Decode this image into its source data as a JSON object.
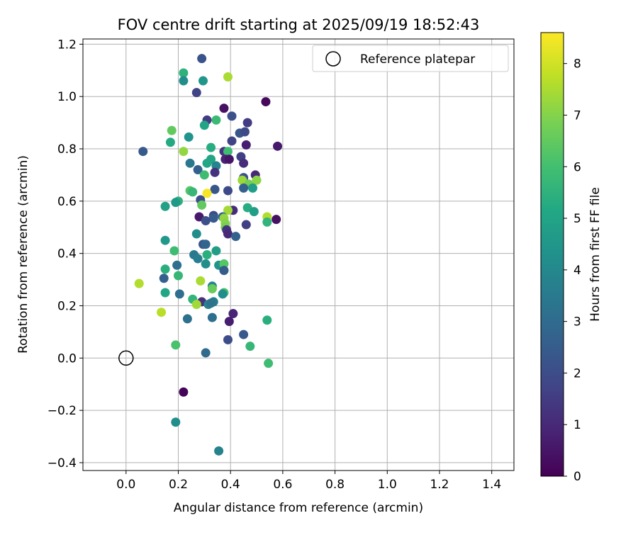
{
  "chart_data": {
    "type": "scatter",
    "title": "FOV centre drift starting at 2025/09/19 18:52:43",
    "xlabel": "Angular distance from reference (arcmin)",
    "ylabel": "Rotation from reference (arcmin)",
    "xlim": [
      -0.165,
      1.485
    ],
    "ylim": [
      -0.43,
      1.22
    ],
    "xticks": [
      0.0,
      0.2,
      0.4,
      0.6,
      0.8,
      1.0,
      1.2,
      1.4
    ],
    "xtick_labels": [
      "0.0",
      "0.2",
      "0.4",
      "0.6",
      "0.8",
      "1.0",
      "1.2",
      "1.4"
    ],
    "yticks": [
      -0.4,
      -0.2,
      0.0,
      0.2,
      0.4,
      0.6,
      0.8,
      1.0,
      1.2
    ],
    "ytick_labels": [
      "−0.4",
      "−0.2",
      "0.0",
      "0.2",
      "0.4",
      "0.6",
      "0.8",
      "1.0",
      "1.2"
    ],
    "grid": true,
    "legend": {
      "location": "upper right",
      "entries": [
        "Reference platepar"
      ]
    },
    "reference_point": {
      "x": 0.0,
      "y": 0.0,
      "label": "Reference platepar"
    },
    "colorbar": {
      "label": "Hours from first FF file",
      "colormap": "viridis",
      "range": [
        0,
        8.6
      ],
      "ticks": [
        0,
        1,
        2,
        3,
        4,
        5,
        6,
        7,
        8
      ],
      "tick_labels": [
        "0",
        "1",
        "2",
        "3",
        "4",
        "5",
        "6",
        "7",
        "8"
      ]
    },
    "points": [
      {
        "x": 0.29,
        "y": 1.145,
        "h": 2.2
      },
      {
        "x": 0.22,
        "y": 1.09,
        "h": 5.5
      },
      {
        "x": 0.39,
        "y": 1.075,
        "h": 7.5
      },
      {
        "x": 0.22,
        "y": 1.06,
        "h": 4.2
      },
      {
        "x": 0.295,
        "y": 1.06,
        "h": 4.5
      },
      {
        "x": 0.27,
        "y": 1.015,
        "h": 1.7
      },
      {
        "x": 0.535,
        "y": 0.98,
        "h": 0.2
      },
      {
        "x": 0.375,
        "y": 0.955,
        "h": 0.4
      },
      {
        "x": 0.405,
        "y": 0.925,
        "h": 2.1
      },
      {
        "x": 0.31,
        "y": 0.91,
        "h": 1.5
      },
      {
        "x": 0.345,
        "y": 0.91,
        "h": 5.8
      },
      {
        "x": 0.465,
        "y": 0.9,
        "h": 1.5
      },
      {
        "x": 0.3,
        "y": 0.89,
        "h": 5.0
      },
      {
        "x": 0.175,
        "y": 0.87,
        "h": 6.5
      },
      {
        "x": 0.435,
        "y": 0.86,
        "h": 2.3
      },
      {
        "x": 0.455,
        "y": 0.865,
        "h": 1.9
      },
      {
        "x": 0.24,
        "y": 0.845,
        "h": 4.4
      },
      {
        "x": 0.405,
        "y": 0.83,
        "h": 1.7
      },
      {
        "x": 0.17,
        "y": 0.825,
        "h": 5.2
      },
      {
        "x": 0.46,
        "y": 0.815,
        "h": 0.7
      },
      {
        "x": 0.58,
        "y": 0.81,
        "h": 0.6
      },
      {
        "x": 0.325,
        "y": 0.805,
        "h": 5.3
      },
      {
        "x": 0.065,
        "y": 0.79,
        "h": 2.4
      },
      {
        "x": 0.22,
        "y": 0.79,
        "h": 7.2
      },
      {
        "x": 0.375,
        "y": 0.79,
        "h": 1.3
      },
      {
        "x": 0.39,
        "y": 0.79,
        "h": 5.9
      },
      {
        "x": 0.38,
        "y": 0.76,
        "h": 0.8
      },
      {
        "x": 0.395,
        "y": 0.76,
        "h": 0.5
      },
      {
        "x": 0.44,
        "y": 0.77,
        "h": 1.6
      },
      {
        "x": 0.325,
        "y": 0.76,
        "h": 5.0
      },
      {
        "x": 0.245,
        "y": 0.745,
        "h": 3.4
      },
      {
        "x": 0.45,
        "y": 0.745,
        "h": 1.1
      },
      {
        "x": 0.31,
        "y": 0.745,
        "h": 5.1
      },
      {
        "x": 0.345,
        "y": 0.735,
        "h": 3.9
      },
      {
        "x": 0.275,
        "y": 0.72,
        "h": 2.6
      },
      {
        "x": 0.34,
        "y": 0.71,
        "h": 1.2
      },
      {
        "x": 0.495,
        "y": 0.7,
        "h": 1.0
      },
      {
        "x": 0.3,
        "y": 0.7,
        "h": 5.9
      },
      {
        "x": 0.45,
        "y": 0.69,
        "h": 2.1
      },
      {
        "x": 0.5,
        "y": 0.68,
        "h": 7.1
      },
      {
        "x": 0.445,
        "y": 0.68,
        "h": 7.3
      },
      {
        "x": 0.47,
        "y": 0.665,
        "h": 6.8
      },
      {
        "x": 0.485,
        "y": 0.65,
        "h": 4.7
      },
      {
        "x": 0.45,
        "y": 0.65,
        "h": 2.6
      },
      {
        "x": 0.34,
        "y": 0.645,
        "h": 2.3
      },
      {
        "x": 0.39,
        "y": 0.64,
        "h": 1.9
      },
      {
        "x": 0.245,
        "y": 0.64,
        "h": 6.3
      },
      {
        "x": 0.255,
        "y": 0.635,
        "h": 5.7
      },
      {
        "x": 0.31,
        "y": 0.63,
        "h": 8.5
      },
      {
        "x": 0.285,
        "y": 0.605,
        "h": 2.0
      },
      {
        "x": 0.2,
        "y": 0.6,
        "h": 5.5
      },
      {
        "x": 0.19,
        "y": 0.595,
        "h": 4.6
      },
      {
        "x": 0.29,
        "y": 0.585,
        "h": 6.5
      },
      {
        "x": 0.15,
        "y": 0.58,
        "h": 4.9
      },
      {
        "x": 0.465,
        "y": 0.575,
        "h": 5.3
      },
      {
        "x": 0.41,
        "y": 0.565,
        "h": 1.1
      },
      {
        "x": 0.39,
        "y": 0.565,
        "h": 7.4
      },
      {
        "x": 0.49,
        "y": 0.56,
        "h": 4.8
      },
      {
        "x": 0.335,
        "y": 0.545,
        "h": 1.9
      },
      {
        "x": 0.28,
        "y": 0.54,
        "h": 0.6
      },
      {
        "x": 0.37,
        "y": 0.54,
        "h": 2.7
      },
      {
        "x": 0.375,
        "y": 0.535,
        "h": 7.2
      },
      {
        "x": 0.335,
        "y": 0.535,
        "h": 2.5
      },
      {
        "x": 0.575,
        "y": 0.53,
        "h": 0.4
      },
      {
        "x": 0.54,
        "y": 0.54,
        "h": 7.6
      },
      {
        "x": 0.305,
        "y": 0.525,
        "h": 2.1
      },
      {
        "x": 0.54,
        "y": 0.52,
        "h": 5.6
      },
      {
        "x": 0.38,
        "y": 0.515,
        "h": 7.0
      },
      {
        "x": 0.46,
        "y": 0.51,
        "h": 1.6
      },
      {
        "x": 0.38,
        "y": 0.5,
        "h": 6.8
      },
      {
        "x": 0.385,
        "y": 0.49,
        "h": 1.3
      },
      {
        "x": 0.39,
        "y": 0.475,
        "h": 1.0
      },
      {
        "x": 0.42,
        "y": 0.465,
        "h": 2.7
      },
      {
        "x": 0.27,
        "y": 0.475,
        "h": 4.2
      },
      {
        "x": 0.15,
        "y": 0.45,
        "h": 4.6
      },
      {
        "x": 0.295,
        "y": 0.435,
        "h": 2.3
      },
      {
        "x": 0.305,
        "y": 0.435,
        "h": 2.8
      },
      {
        "x": 0.185,
        "y": 0.41,
        "h": 5.9
      },
      {
        "x": 0.345,
        "y": 0.41,
        "h": 4.8
      },
      {
        "x": 0.26,
        "y": 0.395,
        "h": 3.5
      },
      {
        "x": 0.31,
        "y": 0.395,
        "h": 5.4
      },
      {
        "x": 0.275,
        "y": 0.38,
        "h": 3.6
      },
      {
        "x": 0.305,
        "y": 0.36,
        "h": 4.2
      },
      {
        "x": 0.195,
        "y": 0.355,
        "h": 3.1
      },
      {
        "x": 0.355,
        "y": 0.355,
        "h": 4.4
      },
      {
        "x": 0.375,
        "y": 0.36,
        "h": 6.3
      },
      {
        "x": 0.375,
        "y": 0.335,
        "h": 2.5
      },
      {
        "x": 0.15,
        "y": 0.34,
        "h": 5.4
      },
      {
        "x": 0.2,
        "y": 0.315,
        "h": 5.7
      },
      {
        "x": 0.145,
        "y": 0.305,
        "h": 2.6
      },
      {
        "x": 0.285,
        "y": 0.295,
        "h": 7.5
      },
      {
        "x": 0.05,
        "y": 0.285,
        "h": 7.6
      },
      {
        "x": 0.33,
        "y": 0.275,
        "h": 3.9
      },
      {
        "x": 0.33,
        "y": 0.265,
        "h": 6.6
      },
      {
        "x": 0.375,
        "y": 0.25,
        "h": 6.1
      },
      {
        "x": 0.15,
        "y": 0.25,
        "h": 5.1
      },
      {
        "x": 0.205,
        "y": 0.245,
        "h": 3.1
      },
      {
        "x": 0.37,
        "y": 0.245,
        "h": 4.2
      },
      {
        "x": 0.255,
        "y": 0.225,
        "h": 5.6
      },
      {
        "x": 0.29,
        "y": 0.215,
        "h": 1.2
      },
      {
        "x": 0.335,
        "y": 0.215,
        "h": 3.5
      },
      {
        "x": 0.315,
        "y": 0.205,
        "h": 3.8
      },
      {
        "x": 0.325,
        "y": 0.21,
        "h": 3.3
      },
      {
        "x": 0.27,
        "y": 0.205,
        "h": 7.4
      },
      {
        "x": 0.135,
        "y": 0.175,
        "h": 7.7
      },
      {
        "x": 0.41,
        "y": 0.17,
        "h": 0.9
      },
      {
        "x": 0.33,
        "y": 0.155,
        "h": 3.1
      },
      {
        "x": 0.235,
        "y": 0.15,
        "h": 3.2
      },
      {
        "x": 0.395,
        "y": 0.14,
        "h": 0.7
      },
      {
        "x": 0.54,
        "y": 0.145,
        "h": 5.4
      },
      {
        "x": 0.45,
        "y": 0.09,
        "h": 2.4
      },
      {
        "x": 0.39,
        "y": 0.07,
        "h": 2.0
      },
      {
        "x": 0.19,
        "y": 0.05,
        "h": 6.1
      },
      {
        "x": 0.475,
        "y": 0.045,
        "h": 5.7
      },
      {
        "x": 0.305,
        "y": 0.02,
        "h": 3.0
      },
      {
        "x": 0.545,
        "y": -0.02,
        "h": 5.9
      },
      {
        "x": 0.22,
        "y": -0.13,
        "h": 0.1
      },
      {
        "x": 0.19,
        "y": -0.245,
        "h": 4.2
      },
      {
        "x": 0.355,
        "y": -0.355,
        "h": 3.8
      }
    ]
  }
}
